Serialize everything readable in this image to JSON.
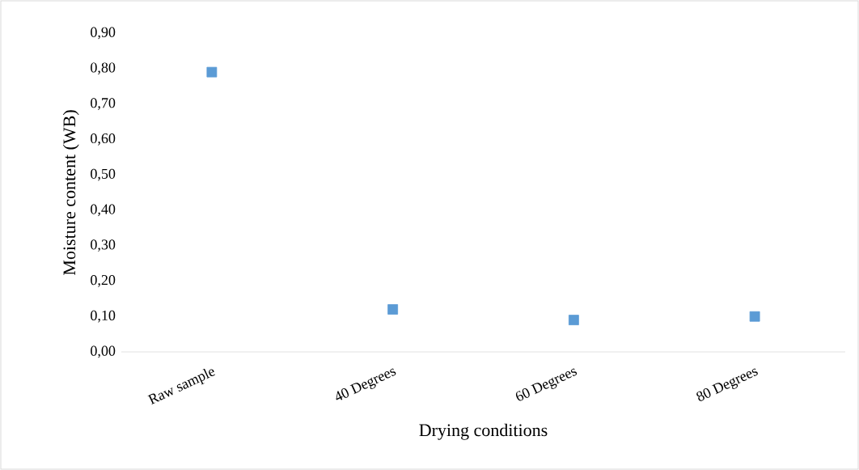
{
  "chart_data": {
    "type": "scatter",
    "xlabel": "Drying conditions",
    "ylabel": "Moisture content (WB)",
    "categories": [
      "Raw sample",
      "40 Degrees",
      "60 Degrees",
      "80 Degrees"
    ],
    "values": [
      0.79,
      0.12,
      0.09,
      0.1
    ],
    "color": "#5b9bd5",
    "marker": "square",
    "ylim": [
      0,
      0.9
    ],
    "yticks": [
      {
        "value": 0,
        "label": "0,00"
      },
      {
        "value": 0.1,
        "label": "0,10"
      },
      {
        "value": 0.2,
        "label": "0,20"
      },
      {
        "value": 0.3,
        "label": "0,30"
      },
      {
        "value": 0.4,
        "label": "0,40"
      },
      {
        "value": 0.5,
        "label": "0,50"
      },
      {
        "value": 0.6,
        "label": "0,60"
      },
      {
        "value": 0.7,
        "label": "0,70"
      },
      {
        "value": 0.8,
        "label": "0,80"
      },
      {
        "value": 0.9,
        "label": "0,90"
      }
    ]
  }
}
